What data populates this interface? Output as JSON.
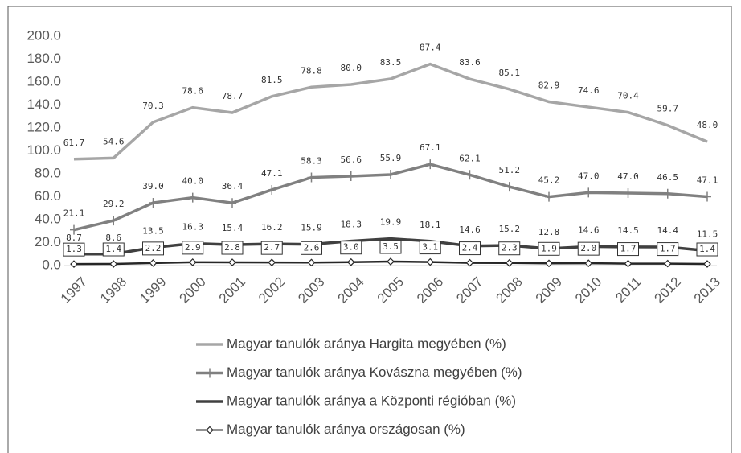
{
  "chart_data": {
    "type": "stacked_line",
    "categories": [
      "1997",
      "1998",
      "1999",
      "2000",
      "2001",
      "2002",
      "2003",
      "2004",
      "2005",
      "2006",
      "2007",
      "2008",
      "2009",
      "2010",
      "2011",
      "2012",
      "2013"
    ],
    "ylim": [
      0,
      200
    ],
    "yticks": [
      {
        "value": 0,
        "label": "0.0"
      },
      {
        "value": 20,
        "label": "20.0"
      },
      {
        "value": 40,
        "label": "40.0"
      },
      {
        "value": 60,
        "label": "60.0"
      },
      {
        "value": 80,
        "label": "80.0"
      },
      {
        "value": 100,
        "label": "100.0"
      },
      {
        "value": 120,
        "label": "120.0"
      },
      {
        "value": 140,
        "label": "140.0"
      },
      {
        "value": 160,
        "label": "160.0"
      },
      {
        "value": 180,
        "label": "180.0"
      },
      {
        "value": 200,
        "label": "200.0"
      }
    ],
    "grid": false,
    "legend": "bottom",
    "series": [
      {
        "name": "Magyar tanulók aránya országosan (%)",
        "color": "#262626",
        "marker": "diamond",
        "values": [
          1.3,
          1.4,
          2.2,
          2.9,
          2.8,
          2.7,
          2.6,
          3.0,
          3.5,
          3.1,
          2.4,
          2.3,
          1.9,
          2.0,
          1.7,
          1.7,
          1.4
        ],
        "value_labels": [
          "1.3",
          "1.4",
          "2.2",
          "2.9",
          "2.8",
          "2.7",
          "2.6",
          "3.0",
          "3.5",
          "3.1",
          "2.4",
          "2.3",
          "1.9",
          "2.0",
          "1.7",
          "1.7",
          "1.4"
        ]
      },
      {
        "name": "Magyar tanulók aránya a Központi régióban (%)",
        "color": "#404040",
        "marker": "none",
        "values": [
          8.7,
          8.6,
          13.5,
          16.3,
          15.4,
          16.2,
          15.9,
          18.3,
          19.9,
          18.1,
          14.6,
          15.2,
          12.8,
          14.6,
          14.5,
          14.4,
          11.5
        ],
        "value_labels": [
          "8.7",
          "8.6",
          "13.5",
          "16.3",
          "15.4",
          "16.2",
          "15.9",
          "18.3",
          "19.9",
          "18.1",
          "14.6",
          "15.2",
          "12.8",
          "14.6",
          "14.5",
          "14.4",
          "11.5"
        ]
      },
      {
        "name": "Magyar tanulók aránya Kovászna megyében (%)",
        "color": "#808080",
        "marker": "plus",
        "values": [
          21.1,
          29.2,
          39.0,
          40.0,
          36.4,
          47.1,
          58.3,
          56.6,
          55.9,
          67.1,
          62.1,
          51.2,
          45.2,
          47.0,
          47.0,
          46.5,
          47.1
        ],
        "value_labels": [
          "21.1",
          "29.2",
          "39.0",
          "40.0",
          "36.4",
          "47.1",
          "58.3",
          "56.6",
          "55.9",
          "67.1",
          "62.1",
          "51.2",
          "45.2",
          "47.0",
          "47.0",
          "46.5",
          "47.1"
        ]
      },
      {
        "name": "Magyar tanulók aránya Hargita megyében (%)",
        "color": "#a6a6a6",
        "marker": "none",
        "values": [
          61.7,
          54.6,
          70.3,
          78.6,
          78.7,
          81.5,
          78.8,
          80.0,
          83.5,
          87.4,
          83.6,
          85.1,
          82.9,
          74.6,
          70.4,
          59.7,
          48.0
        ],
        "value_labels": [
          "61.7",
          "54.6",
          "70.3",
          "78.6",
          "78.7",
          "81.5",
          "78.8",
          "80.0",
          "83.5",
          "87.4",
          "83.6",
          "85.1",
          "82.9",
          "74.6",
          "70.4",
          "59.7",
          "48.0"
        ]
      }
    ]
  }
}
